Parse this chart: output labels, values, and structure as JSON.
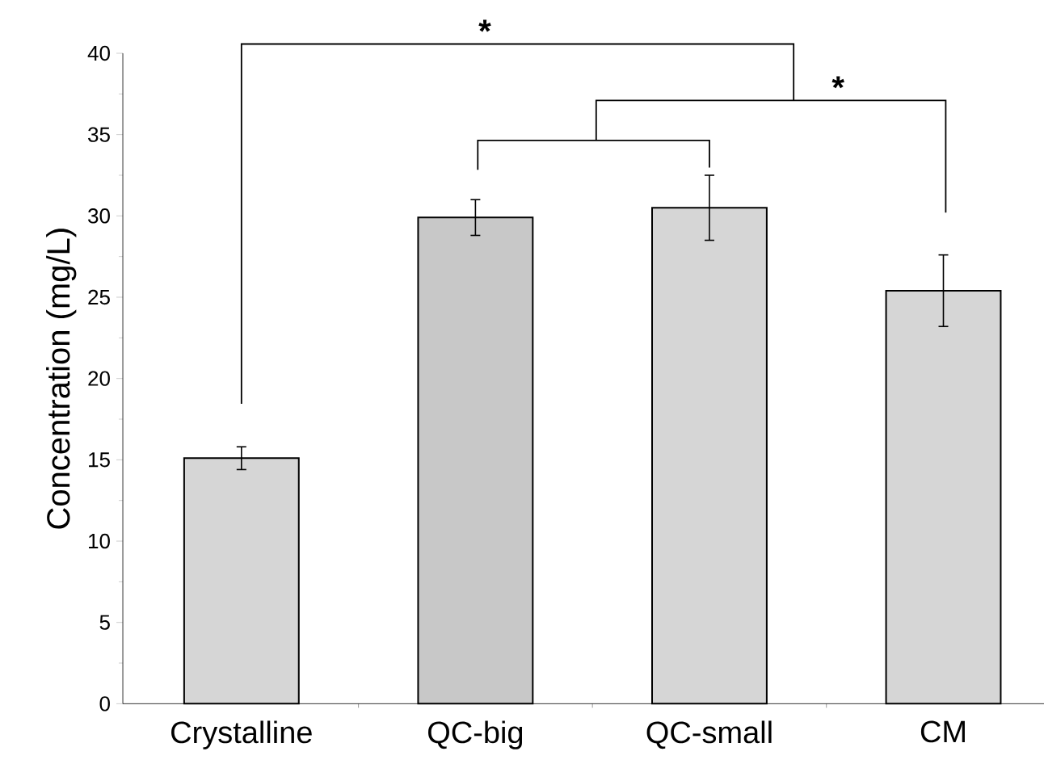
{
  "chart_data": {
    "type": "bar",
    "ylabel": "Concentration (mg/L)",
    "categories": [
      "Crystalline",
      "QC-big",
      "QC-small",
      "CM"
    ],
    "values": [
      15.1,
      29.9,
      30.5,
      25.4
    ],
    "errors": [
      0.7,
      1.1,
      2.0,
      2.2
    ],
    "colors": [
      "#d6d6d6",
      "#c8c8c8",
      "#d6d6d6",
      "#d6d6d6"
    ],
    "ylim": [
      0,
      40
    ],
    "yticks": [
      0,
      5,
      10,
      15,
      20,
      25,
      30,
      35,
      40
    ],
    "annotations": [
      "*",
      "*"
    ]
  }
}
